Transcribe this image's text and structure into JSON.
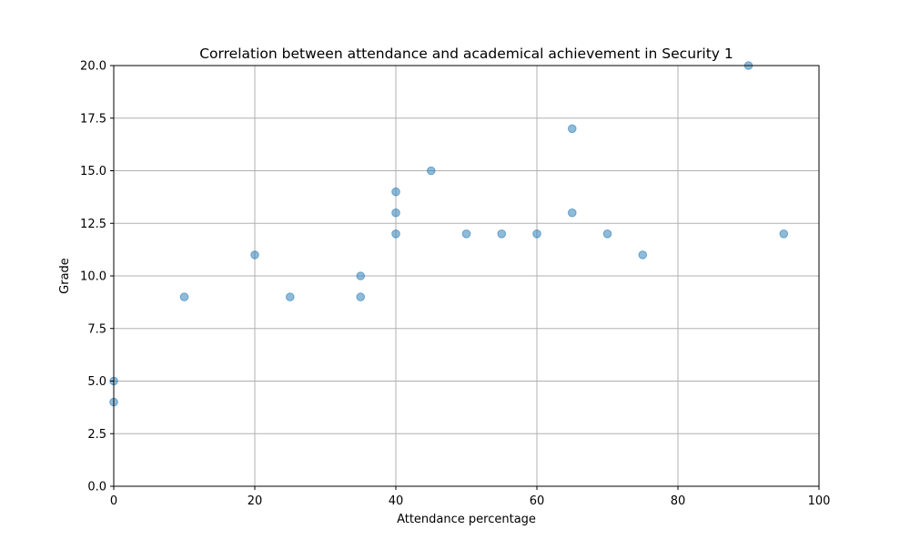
{
  "chart_data": {
    "type": "scatter",
    "title": "Correlation between attendance and academical achievement in Security 1",
    "xlabel": "Attendance percentage",
    "ylabel": "Grade",
    "xlim": [
      0,
      100
    ],
    "ylim": [
      0,
      20
    ],
    "xticks": [
      0,
      20,
      40,
      60,
      80,
      100
    ],
    "yticks": [
      0,
      2.5,
      5,
      7.5,
      10,
      12.5,
      15,
      17.5,
      20
    ],
    "xtick_labels": [
      "0",
      "20",
      "40",
      "60",
      "80",
      "100"
    ],
    "ytick_labels": [
      "0.0",
      "2.5",
      "5.0",
      "7.5",
      "10.0",
      "12.5",
      "15.0",
      "17.5",
      "20.0"
    ],
    "grid": true,
    "point_color": "#1f77b4",
    "point_alpha": 0.5,
    "points": [
      {
        "x": 0,
        "y": 5
      },
      {
        "x": 0,
        "y": 4
      },
      {
        "x": 10,
        "y": 9
      },
      {
        "x": 20,
        "y": 11
      },
      {
        "x": 25,
        "y": 9
      },
      {
        "x": 35,
        "y": 10
      },
      {
        "x": 35,
        "y": 9
      },
      {
        "x": 40,
        "y": 14
      },
      {
        "x": 40,
        "y": 13
      },
      {
        "x": 40,
        "y": 12
      },
      {
        "x": 45,
        "y": 15
      },
      {
        "x": 50,
        "y": 12
      },
      {
        "x": 55,
        "y": 12
      },
      {
        "x": 60,
        "y": 12
      },
      {
        "x": 65,
        "y": 17
      },
      {
        "x": 65,
        "y": 13
      },
      {
        "x": 70,
        "y": 12
      },
      {
        "x": 75,
        "y": 11
      },
      {
        "x": 90,
        "y": 20
      },
      {
        "x": 95,
        "y": 12
      }
    ]
  }
}
